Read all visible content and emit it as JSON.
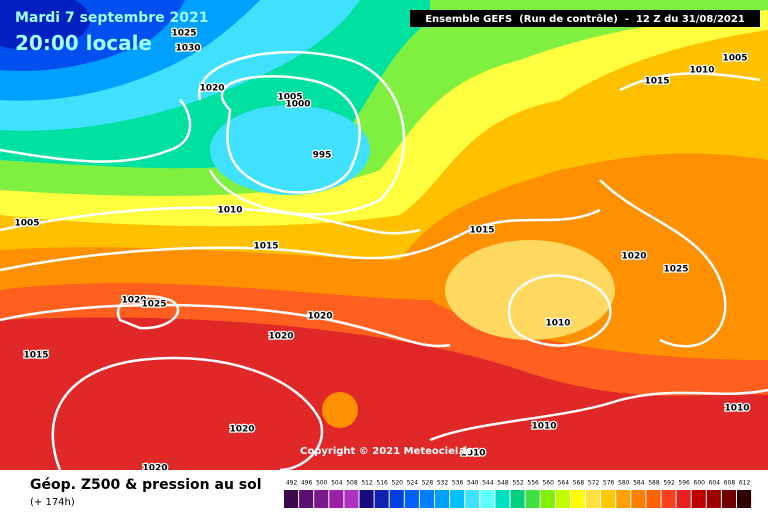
{
  "header": {
    "date": "Mardi 7 septembre 2021",
    "time": "20:00 locale",
    "banner": "Ensemble GEFS  (Run de contrôle)  -  12 Z du 31/08/2021"
  },
  "isobar_labels": [
    "1025",
    "1030",
    "1020",
    "1005",
    "1000",
    "995",
    "1010",
    "1005",
    "1015",
    "1015",
    "1020",
    "1025",
    "1020",
    "1020",
    "1015",
    "1010",
    "1020",
    "1025",
    "1015",
    "1010",
    "1005",
    "1010",
    "1010",
    "1010",
    "1020",
    "1020"
  ],
  "copyright": "Copyright © 2021 Meteociel.fr",
  "footer": {
    "title": "Géop. Z500 & pression au sol",
    "subtitle": "(+ 174h)"
  },
  "scale": {
    "values": [
      492,
      496,
      500,
      504,
      508,
      512,
      516,
      520,
      524,
      528,
      532,
      536,
      540,
      544,
      548,
      552,
      556,
      560,
      564,
      568,
      572,
      576,
      580,
      584,
      588,
      592,
      596,
      600,
      604,
      608,
      612
    ],
    "colors": [
      "#3a0a4a",
      "#5a1070",
      "#7a1a8c",
      "#9a20a8",
      "#b030c0",
      "#1a0a80",
      "#1020b0",
      "#0040e0",
      "#0060ff",
      "#0080ff",
      "#00a0ff",
      "#00c0ff",
      "#40e0ff",
      "#60ffff",
      "#00e0c0",
      "#00d080",
      "#40e040",
      "#80f000",
      "#c0ff00",
      "#ffff00",
      "#ffe040",
      "#ffc800",
      "#ffa000",
      "#ff8000",
      "#ff6000",
      "#ff4020",
      "#e82020",
      "#c00000",
      "#a00000",
      "#700000",
      "#300000"
    ]
  }
}
